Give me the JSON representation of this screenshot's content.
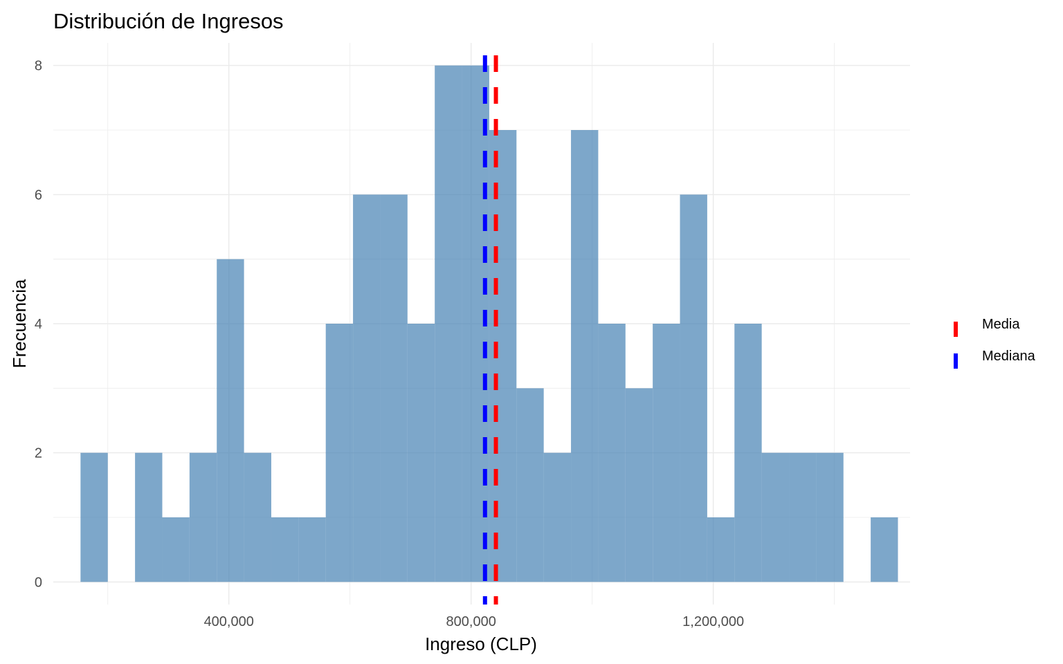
{
  "chart_data": {
    "type": "bar",
    "subtype": "histogram",
    "title": "Distribución de Ingresos",
    "xlabel": "Ingreso (CLP)",
    "ylabel": "Frecuencia",
    "xlim": [
      110000,
      1525000
    ],
    "ylim": [
      -0.35,
      8.35
    ],
    "xticks": [
      400000,
      800000,
      1200000
    ],
    "xtick_labels": [
      "400,000",
      "800,000",
      "1,200,000"
    ],
    "yticks": [
      0,
      2,
      4,
      6,
      8
    ],
    "ytick_labels": [
      "0",
      "2",
      "4",
      "6",
      "8"
    ],
    "grid": true,
    "bar_color": "#4682B4",
    "bins": [
      {
        "x0": 155000,
        "x1": 200000,
        "count": 2
      },
      {
        "x0": 200000,
        "x1": 245000,
        "count": 0
      },
      {
        "x0": 245000,
        "x1": 290000,
        "count": 2
      },
      {
        "x0": 290000,
        "x1": 335000,
        "count": 1
      },
      {
        "x0": 335000,
        "x1": 380000,
        "count": 2
      },
      {
        "x0": 380000,
        "x1": 425000,
        "count": 5
      },
      {
        "x0": 425000,
        "x1": 470000,
        "count": 2
      },
      {
        "x0": 470000,
        "x1": 515000,
        "count": 1
      },
      {
        "x0": 515000,
        "x1": 560000,
        "count": 1
      },
      {
        "x0": 560000,
        "x1": 605000,
        "count": 4
      },
      {
        "x0": 605000,
        "x1": 650000,
        "count": 6
      },
      {
        "x0": 650000,
        "x1": 695000,
        "count": 6
      },
      {
        "x0": 695000,
        "x1": 740000,
        "count": 4
      },
      {
        "x0": 740000,
        "x1": 785000,
        "count": 8
      },
      {
        "x0": 785000,
        "x1": 830000,
        "count": 8
      },
      {
        "x0": 830000,
        "x1": 875000,
        "count": 7
      },
      {
        "x0": 875000,
        "x1": 920000,
        "count": 3
      },
      {
        "x0": 920000,
        "x1": 965000,
        "count": 2
      },
      {
        "x0": 965000,
        "x1": 1010000,
        "count": 7
      },
      {
        "x0": 1010000,
        "x1": 1055000,
        "count": 4
      },
      {
        "x0": 1055000,
        "x1": 1100000,
        "count": 3
      },
      {
        "x0": 1100000,
        "x1": 1145000,
        "count": 4
      },
      {
        "x0": 1145000,
        "x1": 1190000,
        "count": 6
      },
      {
        "x0": 1190000,
        "x1": 1235000,
        "count": 1
      },
      {
        "x0": 1235000,
        "x1": 1280000,
        "count": 4
      },
      {
        "x0": 1280000,
        "x1": 1325000,
        "count": 2
      },
      {
        "x0": 1325000,
        "x1": 1370000,
        "count": 2
      },
      {
        "x0": 1370000,
        "x1": 1415000,
        "count": 2
      },
      {
        "x0": 1415000,
        "x1": 1460000,
        "count": 0
      },
      {
        "x0": 1460000,
        "x1": 1505000,
        "count": 1
      }
    ],
    "reference_lines": [
      {
        "name": "Media",
        "value": 841000,
        "color": "#FF0000",
        "style": "dashed"
      },
      {
        "name": "Mediana",
        "value": 823000,
        "color": "#0000FF",
        "style": "dashed"
      }
    ],
    "legend": {
      "placement": "right",
      "entries": [
        {
          "label": "Media",
          "color": "#FF0000"
        },
        {
          "label": "Mediana",
          "color": "#0000FF"
        }
      ]
    }
  }
}
